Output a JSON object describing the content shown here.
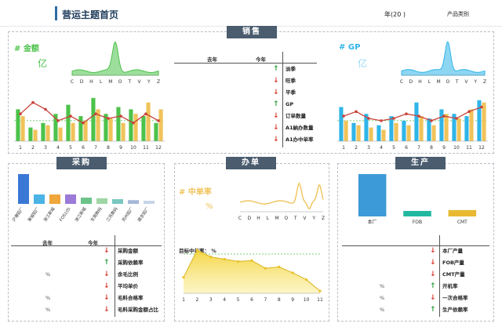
{
  "header": {
    "title": "营运主题首页",
    "year_label": "年(20     )",
    "product_type_label": "产品类别"
  },
  "sales": {
    "tag": "销售",
    "amount_title": "# 金额",
    "amount_unit": "亿",
    "gp_title": "# GP",
    "gp_unit": "亿",
    "table_headers": {
      "last_year": "去年",
      "this_year": "今年"
    },
    "rows": [
      {
        "label": "淡季",
        "trend": "up"
      },
      {
        "label": "旺季",
        "trend": "down"
      },
      {
        "label": "平季",
        "trend": "down"
      },
      {
        "label": "GP",
        "trend": "up"
      },
      {
        "label": "订单数量",
        "trend": "down"
      },
      {
        "label": "A1納办数量",
        "trend": "down"
      },
      {
        "label": "A1办中单率",
        "trend": "down"
      }
    ],
    "mini_x_labels": [
      "C",
      "D",
      "H",
      "L",
      "M",
      "O",
      "T",
      "V",
      "Y",
      "Z"
    ],
    "month_labels": [
      "1",
      "2",
      "3",
      "4",
      "5",
      "6",
      "7",
      "8",
      "9",
      "10",
      "11",
      "12"
    ],
    "amount_bars": [
      {
        "green": 0.7,
        "yellow": 0.55
      },
      {
        "green": 0.3,
        "yellow": 0.25
      },
      {
        "green": 0.4,
        "yellow": 0.35
      },
      {
        "green": 0.6,
        "yellow": 0.3
      },
      {
        "green": 0.8,
        "yellow": 0.4
      },
      {
        "green": 0.55,
        "yellow": 0.45
      },
      {
        "green": 0.95,
        "yellow": 0.7
      },
      {
        "green": 0.6,
        "yellow": 0.5
      },
      {
        "green": 0.75,
        "yellow": 0.4
      },
      {
        "green": 0.7,
        "yellow": 0.6
      },
      {
        "green": 0.55,
        "yellow": 0.85
      },
      {
        "green": 0.4,
        "yellow": 0.7
      }
    ],
    "amount_line": [
      0.6,
      0.85,
      0.7,
      0.45,
      0.55,
      0.4,
      0.6,
      0.5,
      0.55,
      0.4,
      0.6,
      0.45
    ],
    "gp_bars": [
      {
        "blue": 0.75,
        "yellow": 0.45
      },
      {
        "blue": 0.4,
        "yellow": 0.35
      },
      {
        "blue": 0.6,
        "yellow": 0.3
      },
      {
        "blue": 0.35,
        "yellow": 0.25
      },
      {
        "blue": 0.55,
        "yellow": 0.4
      },
      {
        "blue": 0.45,
        "yellow": 0.35
      },
      {
        "blue": 0.85,
        "yellow": 0.55
      },
      {
        "blue": 0.5,
        "yellow": 0.35
      },
      {
        "blue": 0.7,
        "yellow": 0.6
      },
      {
        "blue": 0.6,
        "yellow": 0.5
      },
      {
        "blue": 0.55,
        "yellow": 0.7
      },
      {
        "blue": 0.9,
        "yellow": 0.85
      }
    ],
    "gp_line": [
      0.55,
      0.65,
      0.5,
      0.45,
      0.5,
      0.6,
      0.55,
      0.45,
      0.55,
      0.5,
      0.65,
      0.75
    ]
  },
  "purchase": {
    "tag": "采购",
    "bar_categories": [
      "沪港铝厂",
      "莱城铝厂",
      "浙江新城",
      "FOS105",
      "浙江新城",
      "东莞数码",
      "江苏数码",
      "苏州铝厂",
      "南京铝厂"
    ],
    "bar_values": [
      0.95,
      0.3,
      0.3,
      0.3,
      0.2,
      0.18,
      0.15,
      0.12,
      0.1
    ],
    "bar_colors": [
      "#3a78d6",
      "#4bb3e6",
      "#f0a63a",
      "#9b7ad8",
      "#6cc389",
      "#9fd6a4",
      "#7ac7c0",
      "#a7b8d8",
      "#c7d4e8"
    ],
    "table_headers": {
      "last_year": "去年",
      "this_year": "今年"
    },
    "rows": [
      {
        "label": "采购金额",
        "trend": "down",
        "value": ""
      },
      {
        "label": "采购依赖率",
        "trend": "up",
        "value": ""
      },
      {
        "label": "余毛比例",
        "trend": "down",
        "value": "%"
      },
      {
        "label": "平均单价",
        "trend": "down",
        "value": ""
      },
      {
        "label": "毛料合格率",
        "trend": "down",
        "value": "%"
      },
      {
        "label": "毛料采购金额占比",
        "trend": "down",
        "value": "%"
      }
    ]
  },
  "handling": {
    "tag": "办单",
    "rate_title": "# 中单率",
    "rate_unit": "%",
    "mini_x_labels": [
      "C",
      "D",
      "H",
      "L",
      "M",
      "O",
      "T",
      "V",
      "Y",
      "Z"
    ],
    "target_label": "目标中单率：  %",
    "area_x_labels": [
      "1",
      "2",
      "3",
      "4",
      "5",
      "6",
      "7",
      "8",
      "9",
      "10",
      "11"
    ],
    "area_values": [
      0.35,
      0.95,
      0.8,
      0.75,
      0.7,
      0.72,
      0.55,
      0.58,
      0.45,
      0.3,
      0.05
    ]
  },
  "production": {
    "tag": "生产",
    "bars": [
      {
        "label": "本厂",
        "value": 1.0,
        "color": "#3d9ad8"
      },
      {
        "label": "FOB",
        "value": 0.13,
        "color": "#22b8a0"
      },
      {
        "label": "CMT",
        "value": 0.15,
        "color": "#e8b931"
      }
    ],
    "rows": [
      {
        "label": "本厂产量",
        "trend": "down",
        "value": ""
      },
      {
        "label": "FOB产量",
        "trend": "down",
        "value": ""
      },
      {
        "label": "CMT产量",
        "trend": "down",
        "value": ""
      },
      {
        "label": "开机率",
        "trend": "up",
        "value": "%"
      },
      {
        "label": "一次合格率",
        "trend": "down",
        "value": "%"
      },
      {
        "label": "生产依赖率",
        "trend": "up",
        "value": "%"
      }
    ]
  },
  "colors": {
    "green": "#4cc24a",
    "gold": "#f0c35a",
    "blue": "#2fb5e8",
    "red_line": "#c9433b",
    "tag_bg": "#4a5c6e",
    "yellow_area": "#f4d33b"
  }
}
